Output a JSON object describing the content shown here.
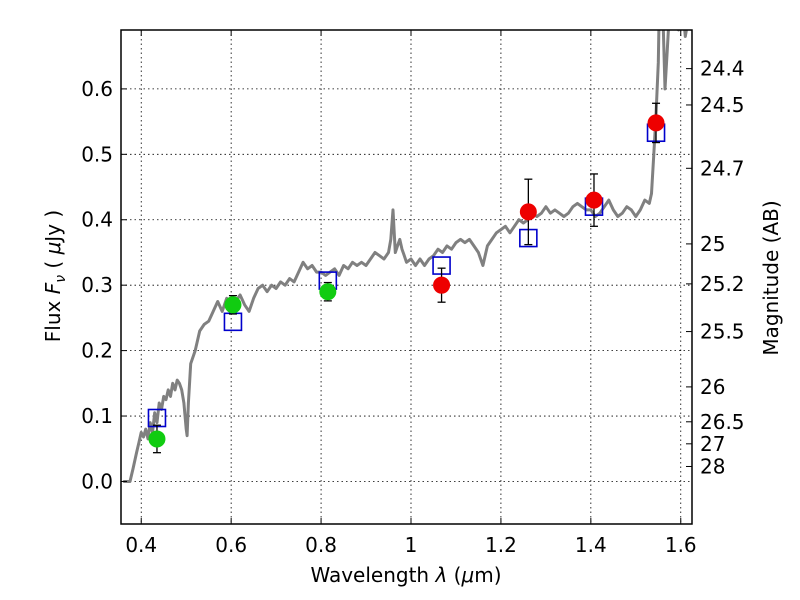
{
  "chart_data": {
    "type": "scatter",
    "xlabel": "Wavelength  λ (μm)",
    "ylabel": "Flux  F_ν  ( μJy )",
    "ylabel_parts": {
      "pre": "Flux  ",
      "sym": "F",
      "sub": "ν",
      "post1": "  ( ",
      "mu": "μ",
      "post2": "Jy )"
    },
    "xlabel_parts": {
      "pre": "Wavelength  ",
      "lam": "λ",
      "post1": " (",
      "mu": "μ",
      "post2": "m)"
    },
    "right_ylabel": "Magnitude (AB)",
    "xlim": [
      0.355,
      1.625
    ],
    "ylim": [
      -0.065,
      0.69
    ],
    "grid": true,
    "x_ticks": [
      {
        "v": 0.4,
        "label": "0.4"
      },
      {
        "v": 0.6,
        "label": "0.6"
      },
      {
        "v": 0.8,
        "label": "0.8"
      },
      {
        "v": 1.0,
        "label": "1"
      },
      {
        "v": 1.2,
        "label": "1.2"
      },
      {
        "v": 1.4,
        "label": "1.4"
      },
      {
        "v": 1.6,
        "label": "1.6"
      }
    ],
    "y_ticks": [
      {
        "v": 0.0,
        "label": "0.0"
      },
      {
        "v": 0.1,
        "label": "0.1"
      },
      {
        "v": 0.2,
        "label": "0.2"
      },
      {
        "v": 0.3,
        "label": "0.3"
      },
      {
        "v": 0.4,
        "label": "0.4"
      },
      {
        "v": 0.5,
        "label": "0.5"
      },
      {
        "v": 0.6,
        "label": "0.6"
      }
    ],
    "right_ticks": [
      {
        "mag": 24.4,
        "label": "24.4"
      },
      {
        "mag": 24.5,
        "label": "24.5"
      },
      {
        "mag": 24.7,
        "label": "24.7"
      },
      {
        "mag": 25.0,
        "label": "25"
      },
      {
        "mag": 25.2,
        "label": "25.2"
      },
      {
        "mag": 25.5,
        "label": "25.5"
      },
      {
        "mag": 26.0,
        "label": "26"
      },
      {
        "mag": 26.5,
        "label": "26.5"
      },
      {
        "mag": 27.0,
        "label": "27"
      },
      {
        "mag": 28.0,
        "label": "28"
      }
    ],
    "model_spectrum": {
      "color": "#808080",
      "points": [
        [
          0.36,
          0.0
        ],
        [
          0.375,
          0.0
        ],
        [
          0.382,
          0.02
        ],
        [
          0.39,
          0.045
        ],
        [
          0.395,
          0.06
        ],
        [
          0.4,
          0.075
        ],
        [
          0.405,
          0.068
        ],
        [
          0.41,
          0.08
        ],
        [
          0.415,
          0.065
        ],
        [
          0.42,
          0.09
        ],
        [
          0.425,
          0.075
        ],
        [
          0.43,
          0.105
        ],
        [
          0.435,
          0.09
        ],
        [
          0.44,
          0.12
        ],
        [
          0.445,
          0.11
        ],
        [
          0.45,
          0.13
        ],
        [
          0.455,
          0.125
        ],
        [
          0.46,
          0.14
        ],
        [
          0.465,
          0.13
        ],
        [
          0.47,
          0.15
        ],
        [
          0.475,
          0.14
        ],
        [
          0.48,
          0.155
        ],
        [
          0.485,
          0.15
        ],
        [
          0.49,
          0.14
        ],
        [
          0.495,
          0.12
        ],
        [
          0.5,
          0.08
        ],
        [
          0.502,
          0.07
        ],
        [
          0.505,
          0.12
        ],
        [
          0.51,
          0.18
        ],
        [
          0.52,
          0.2
        ],
        [
          0.53,
          0.23
        ],
        [
          0.54,
          0.24
        ],
        [
          0.55,
          0.245
        ],
        [
          0.56,
          0.26
        ],
        [
          0.57,
          0.275
        ],
        [
          0.58,
          0.26
        ],
        [
          0.59,
          0.28
        ],
        [
          0.6,
          0.27
        ],
        [
          0.61,
          0.275
        ],
        [
          0.62,
          0.285
        ],
        [
          0.63,
          0.27
        ],
        [
          0.64,
          0.26
        ],
        [
          0.65,
          0.28
        ],
        [
          0.66,
          0.295
        ],
        [
          0.67,
          0.3
        ],
        [
          0.68,
          0.29
        ],
        [
          0.69,
          0.3
        ],
        [
          0.7,
          0.295
        ],
        [
          0.71,
          0.305
        ],
        [
          0.72,
          0.3
        ],
        [
          0.73,
          0.31
        ],
        [
          0.74,
          0.305
        ],
        [
          0.75,
          0.32
        ],
        [
          0.76,
          0.335
        ],
        [
          0.77,
          0.325
        ],
        [
          0.78,
          0.33
        ],
        [
          0.79,
          0.32
        ],
        [
          0.8,
          0.32
        ],
        [
          0.81,
          0.315
        ],
        [
          0.82,
          0.32
        ],
        [
          0.83,
          0.325
        ],
        [
          0.84,
          0.315
        ],
        [
          0.85,
          0.33
        ],
        [
          0.86,
          0.325
        ],
        [
          0.87,
          0.335
        ],
        [
          0.88,
          0.33
        ],
        [
          0.89,
          0.335
        ],
        [
          0.9,
          0.33
        ],
        [
          0.91,
          0.34
        ],
        [
          0.92,
          0.35
        ],
        [
          0.93,
          0.345
        ],
        [
          0.94,
          0.34
        ],
        [
          0.95,
          0.35
        ],
        [
          0.955,
          0.37
        ],
        [
          0.96,
          0.415
        ],
        [
          0.965,
          0.35
        ],
        [
          0.97,
          0.36
        ],
        [
          0.975,
          0.37
        ],
        [
          0.98,
          0.355
        ],
        [
          0.985,
          0.345
        ],
        [
          0.99,
          0.335
        ],
        [
          1.0,
          0.34
        ],
        [
          1.01,
          0.33
        ],
        [
          1.02,
          0.34
        ],
        [
          1.03,
          0.33
        ],
        [
          1.04,
          0.34
        ],
        [
          1.05,
          0.345
        ],
        [
          1.06,
          0.355
        ],
        [
          1.07,
          0.35
        ],
        [
          1.08,
          0.36
        ],
        [
          1.09,
          0.355
        ],
        [
          1.1,
          0.365
        ],
        [
          1.11,
          0.37
        ],
        [
          1.12,
          0.365
        ],
        [
          1.13,
          0.37
        ],
        [
          1.14,
          0.36
        ],
        [
          1.15,
          0.35
        ],
        [
          1.16,
          0.33
        ],
        [
          1.17,
          0.36
        ],
        [
          1.18,
          0.37
        ],
        [
          1.19,
          0.38
        ],
        [
          1.2,
          0.385
        ],
        [
          1.21,
          0.39
        ],
        [
          1.22,
          0.38
        ],
        [
          1.23,
          0.39
        ],
        [
          1.24,
          0.4
        ],
        [
          1.25,
          0.395
        ],
        [
          1.26,
          0.4
        ],
        [
          1.27,
          0.41
        ],
        [
          1.28,
          0.405
        ],
        [
          1.29,
          0.41
        ],
        [
          1.3,
          0.42
        ],
        [
          1.31,
          0.41
        ],
        [
          1.32,
          0.415
        ],
        [
          1.33,
          0.41
        ],
        [
          1.34,
          0.405
        ],
        [
          1.35,
          0.41
        ],
        [
          1.36,
          0.42
        ],
        [
          1.37,
          0.425
        ],
        [
          1.38,
          0.42
        ],
        [
          1.39,
          0.415
        ],
        [
          1.4,
          0.415
        ],
        [
          1.41,
          0.405
        ],
        [
          1.42,
          0.41
        ],
        [
          1.43,
          0.42
        ],
        [
          1.44,
          0.43
        ],
        [
          1.45,
          0.415
        ],
        [
          1.46,
          0.405
        ],
        [
          1.47,
          0.41
        ],
        [
          1.48,
          0.42
        ],
        [
          1.49,
          0.415
        ],
        [
          1.5,
          0.405
        ],
        [
          1.51,
          0.415
        ],
        [
          1.52,
          0.43
        ],
        [
          1.53,
          0.425
        ],
        [
          1.535,
          0.44
        ],
        [
          1.54,
          0.5
        ],
        [
          1.545,
          0.56
        ],
        [
          1.55,
          0.64
        ],
        [
          1.552,
          0.72
        ],
        [
          1.56,
          0.72
        ],
        [
          1.565,
          0.6
        ],
        [
          1.57,
          0.66
        ],
        [
          1.575,
          0.72
        ],
        [
          1.59,
          0.72
        ],
        [
          1.595,
          0.69
        ],
        [
          1.6,
          0.7
        ],
        [
          1.605,
          0.72
        ],
        [
          1.61,
          0.68
        ],
        [
          1.615,
          0.7
        ],
        [
          1.625,
          0.69
        ]
      ]
    },
    "model_points": {
      "color": "#0000cc",
      "points": [
        {
          "x": 0.435,
          "y": 0.097
        },
        {
          "x": 0.604,
          "y": 0.244
        },
        {
          "x": 0.815,
          "y": 0.307
        },
        {
          "x": 1.068,
          "y": 0.33
        },
        {
          "x": 1.261,
          "y": 0.372
        },
        {
          "x": 1.407,
          "y": 0.42
        },
        {
          "x": 1.545,
          "y": 0.533
        }
      ]
    },
    "observed_green": {
      "color": "#11cc11",
      "points": [
        {
          "x": 0.435,
          "y": 0.065,
          "err": 0.021
        },
        {
          "x": 0.604,
          "y": 0.27,
          "err": 0.014
        },
        {
          "x": 0.815,
          "y": 0.29,
          "err": 0.014
        }
      ]
    },
    "observed_red": {
      "color": "#ee0000",
      "points": [
        {
          "x": 1.068,
          "y": 0.3,
          "err": 0.026
        },
        {
          "x": 1.261,
          "y": 0.412,
          "err": 0.05
        },
        {
          "x": 1.407,
          "y": 0.43,
          "err": 0.04
        },
        {
          "x": 1.545,
          "y": 0.548,
          "err": 0.03
        }
      ]
    }
  }
}
